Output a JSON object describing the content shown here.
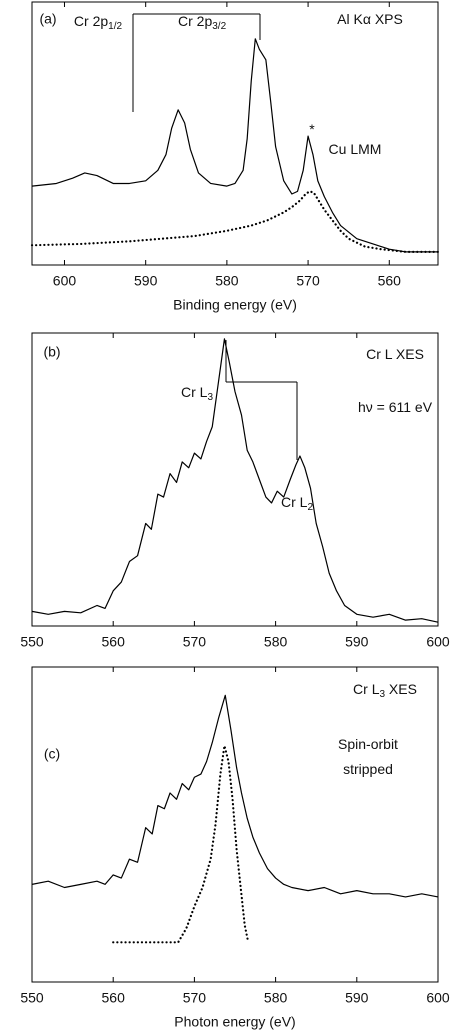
{
  "chart_data": [
    {
      "type": "line",
      "panel": "(a)",
      "xlabel": "Binding energy (eV)",
      "xlim": [
        604,
        554
      ],
      "xticks": [
        600,
        590,
        580,
        570,
        560
      ],
      "ylim": [
        0,
        100
      ],
      "annotations": [
        {
          "text": "Al Kα XPS"
        },
        {
          "text": "Cr 2p",
          "sub": "1/2"
        },
        {
          "text": "Cr 2p",
          "sub": "3/2"
        },
        {
          "text": "*"
        },
        {
          "text": "Cu LMM"
        }
      ],
      "series": [
        {
          "style": "solid",
          "color": "#000000",
          "x": [
            604,
            601,
            599,
            597.5,
            596,
            594,
            592,
            590,
            588.5,
            587.5,
            586.8,
            586,
            585.2,
            584.5,
            583.5,
            582,
            580,
            579,
            578,
            577.5,
            577,
            576.5,
            576,
            575.6,
            575.2,
            574.6,
            574,
            573,
            572,
            571.3,
            570.6,
            570,
            569.4,
            568.8,
            568,
            567,
            566,
            564,
            562,
            560,
            558,
            556,
            554
          ],
          "values": [
            30,
            31,
            33,
            35,
            34,
            31,
            31,
            32,
            36,
            42,
            52,
            59,
            54,
            44,
            35,
            31,
            30,
            31,
            36,
            48,
            70,
            86,
            82,
            80,
            78,
            62,
            45,
            32,
            27,
            28,
            36,
            49,
            42,
            32,
            26,
            20,
            15,
            10,
            8,
            6,
            5,
            5,
            5
          ]
        },
        {
          "style": "dotted",
          "color": "#000000",
          "x": [
            604,
            598,
            592,
            588,
            584,
            580,
            577,
            575,
            573,
            572,
            571,
            570.3,
            569.8,
            569.3,
            568.8,
            568,
            567,
            566,
            565,
            563,
            561,
            558,
            554
          ],
          "values": [
            7.5,
            8,
            9,
            10,
            11,
            13,
            15,
            17,
            20,
            22,
            24.5,
            27,
            28,
            27.5,
            25,
            21,
            17,
            13,
            10,
            7,
            6,
            5,
            5
          ]
        }
      ]
    },
    {
      "type": "line",
      "panel": "(b)",
      "xlim": [
        550,
        600
      ],
      "xticks": [
        550,
        560,
        570,
        580,
        590,
        600
      ],
      "ylim": [
        0,
        100
      ],
      "annotations": [
        {
          "text": "Cr L XES"
        },
        {
          "text": "hν = 611 eV"
        },
        {
          "text": "Cr L",
          "sub": "3"
        },
        {
          "text": "Cr L",
          "sub": "2"
        }
      ],
      "series": [
        {
          "style": "solid",
          "color": "#000000",
          "x": [
            550,
            552,
            554,
            556,
            558,
            559,
            560,
            561,
            562,
            563,
            564,
            564.7,
            565.5,
            566.2,
            567,
            567.8,
            568.5,
            569.3,
            570,
            570.8,
            571.5,
            572.2,
            573,
            573.7,
            574.3,
            575,
            575.8,
            576.5,
            577.2,
            578,
            578.8,
            579.5,
            580.2,
            581,
            581.8,
            582.5,
            583,
            583.6,
            584.3,
            585,
            585.8,
            586.6,
            587.5,
            588.5,
            590,
            592,
            594,
            596,
            598,
            600
          ],
          "values": [
            5,
            4,
            5,
            4.5,
            7,
            6,
            12,
            15,
            22,
            24,
            35,
            33,
            45,
            44,
            52,
            49,
            56,
            54,
            59,
            57,
            63,
            68,
            84,
            98,
            90,
            80,
            72,
            60,
            56,
            50,
            44,
            42,
            46,
            44,
            50,
            55,
            58,
            54,
            47,
            35,
            27,
            18,
            12,
            7,
            4,
            3,
            4,
            2,
            2.5,
            1.3
          ]
        }
      ]
    },
    {
      "type": "line",
      "panel": "(c)",
      "xlabel": "Photon energy (eV)",
      "xlim": [
        550,
        600
      ],
      "xticks": [
        550,
        560,
        570,
        580,
        590,
        600
      ],
      "ylim": [
        0,
        100
      ],
      "annotations": [
        {
          "text": "Cr L",
          "sub": "3",
          "tail": " XES"
        },
        {
          "text": "Spin-orbit"
        },
        {
          "text": "stripped"
        }
      ],
      "series": [
        {
          "style": "solid",
          "color": "#000000",
          "x": [
            550,
            552,
            554,
            556,
            558,
            559,
            560,
            561,
            562,
            563,
            564,
            564.8,
            565.5,
            566.3,
            567,
            567.8,
            568.5,
            569.3,
            570,
            570.8,
            571.5,
            572.2,
            573,
            573.8,
            574.5,
            575.2,
            575.8,
            576.5,
            577.2,
            578,
            579,
            580,
            581,
            582,
            584,
            586,
            588,
            590,
            592,
            594,
            596,
            598,
            600
          ],
          "values": [
            31,
            32,
            30,
            31,
            32,
            31,
            34,
            33,
            39,
            38,
            49,
            47,
            56,
            55,
            60,
            58,
            63,
            61,
            65,
            66,
            70,
            76,
            84,
            91,
            80,
            68,
            60,
            52,
            46,
            41,
            36,
            33,
            31,
            30,
            29,
            30,
            28,
            29,
            28,
            28,
            27,
            28,
            27
          ]
        },
        {
          "style": "dotted",
          "color": "#000000",
          "x": [
            560,
            562,
            564,
            566,
            568,
            569,
            570,
            571,
            572,
            572.6,
            573.2,
            573.7,
            574.2,
            574.7,
            575.2,
            575.7,
            576.2,
            576.6
          ],
          "values": [
            12.6,
            12.6,
            12.6,
            12.6,
            12.6,
            17,
            24,
            30,
            39,
            50,
            66,
            75,
            70,
            58,
            42,
            30,
            18,
            13
          ]
        }
      ]
    }
  ]
}
